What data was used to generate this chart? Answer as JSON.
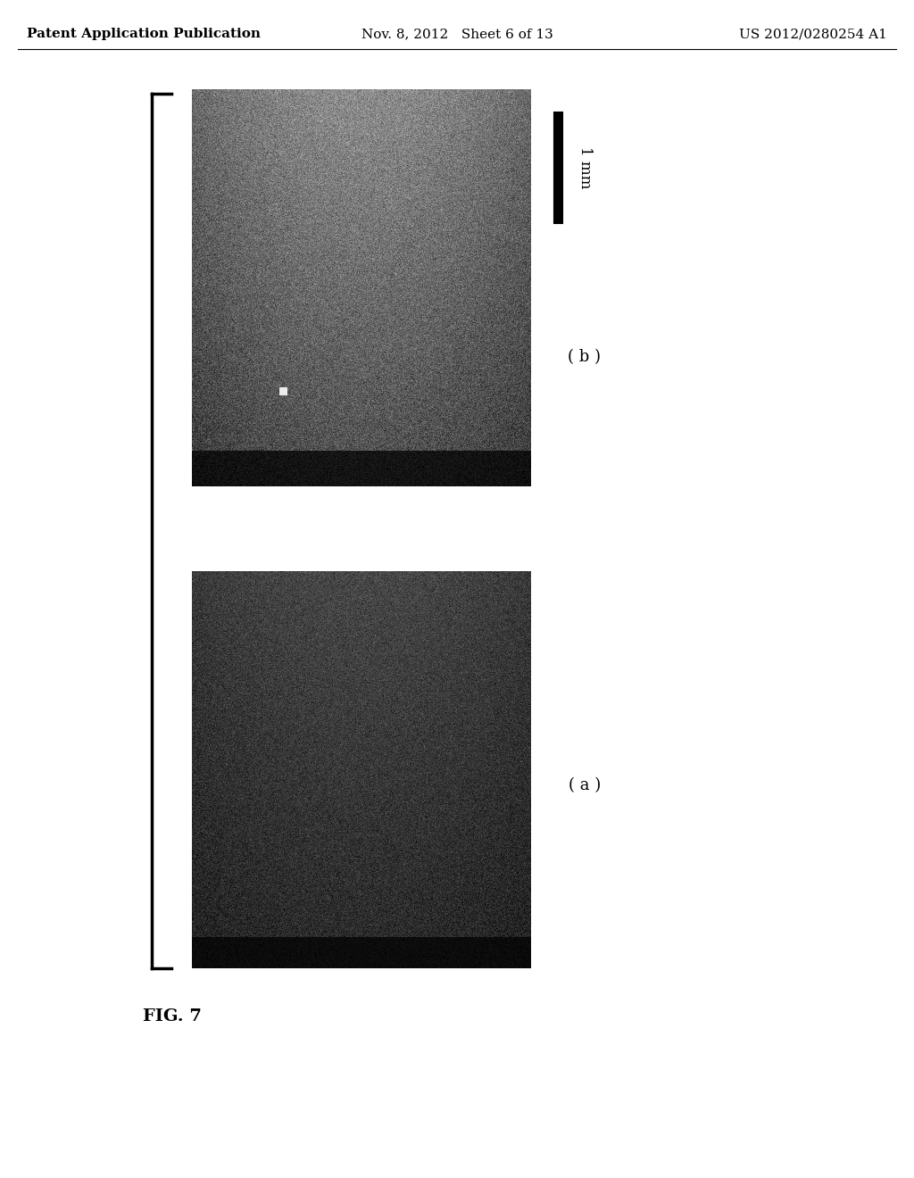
{
  "header_left": "Patent Application Publication",
  "header_mid": "Nov. 8, 2012   Sheet 6 of 13",
  "header_right": "US 2012/0280254 A1",
  "fig_label": "FIG. 7",
  "label_b": "( b )",
  "label_a": "( a )",
  "scale_label": "1 mm",
  "background_color": "#ffffff",
  "header_font_size": 11,
  "fig_label_font_size": 14,
  "panel_label_font_size": 13
}
